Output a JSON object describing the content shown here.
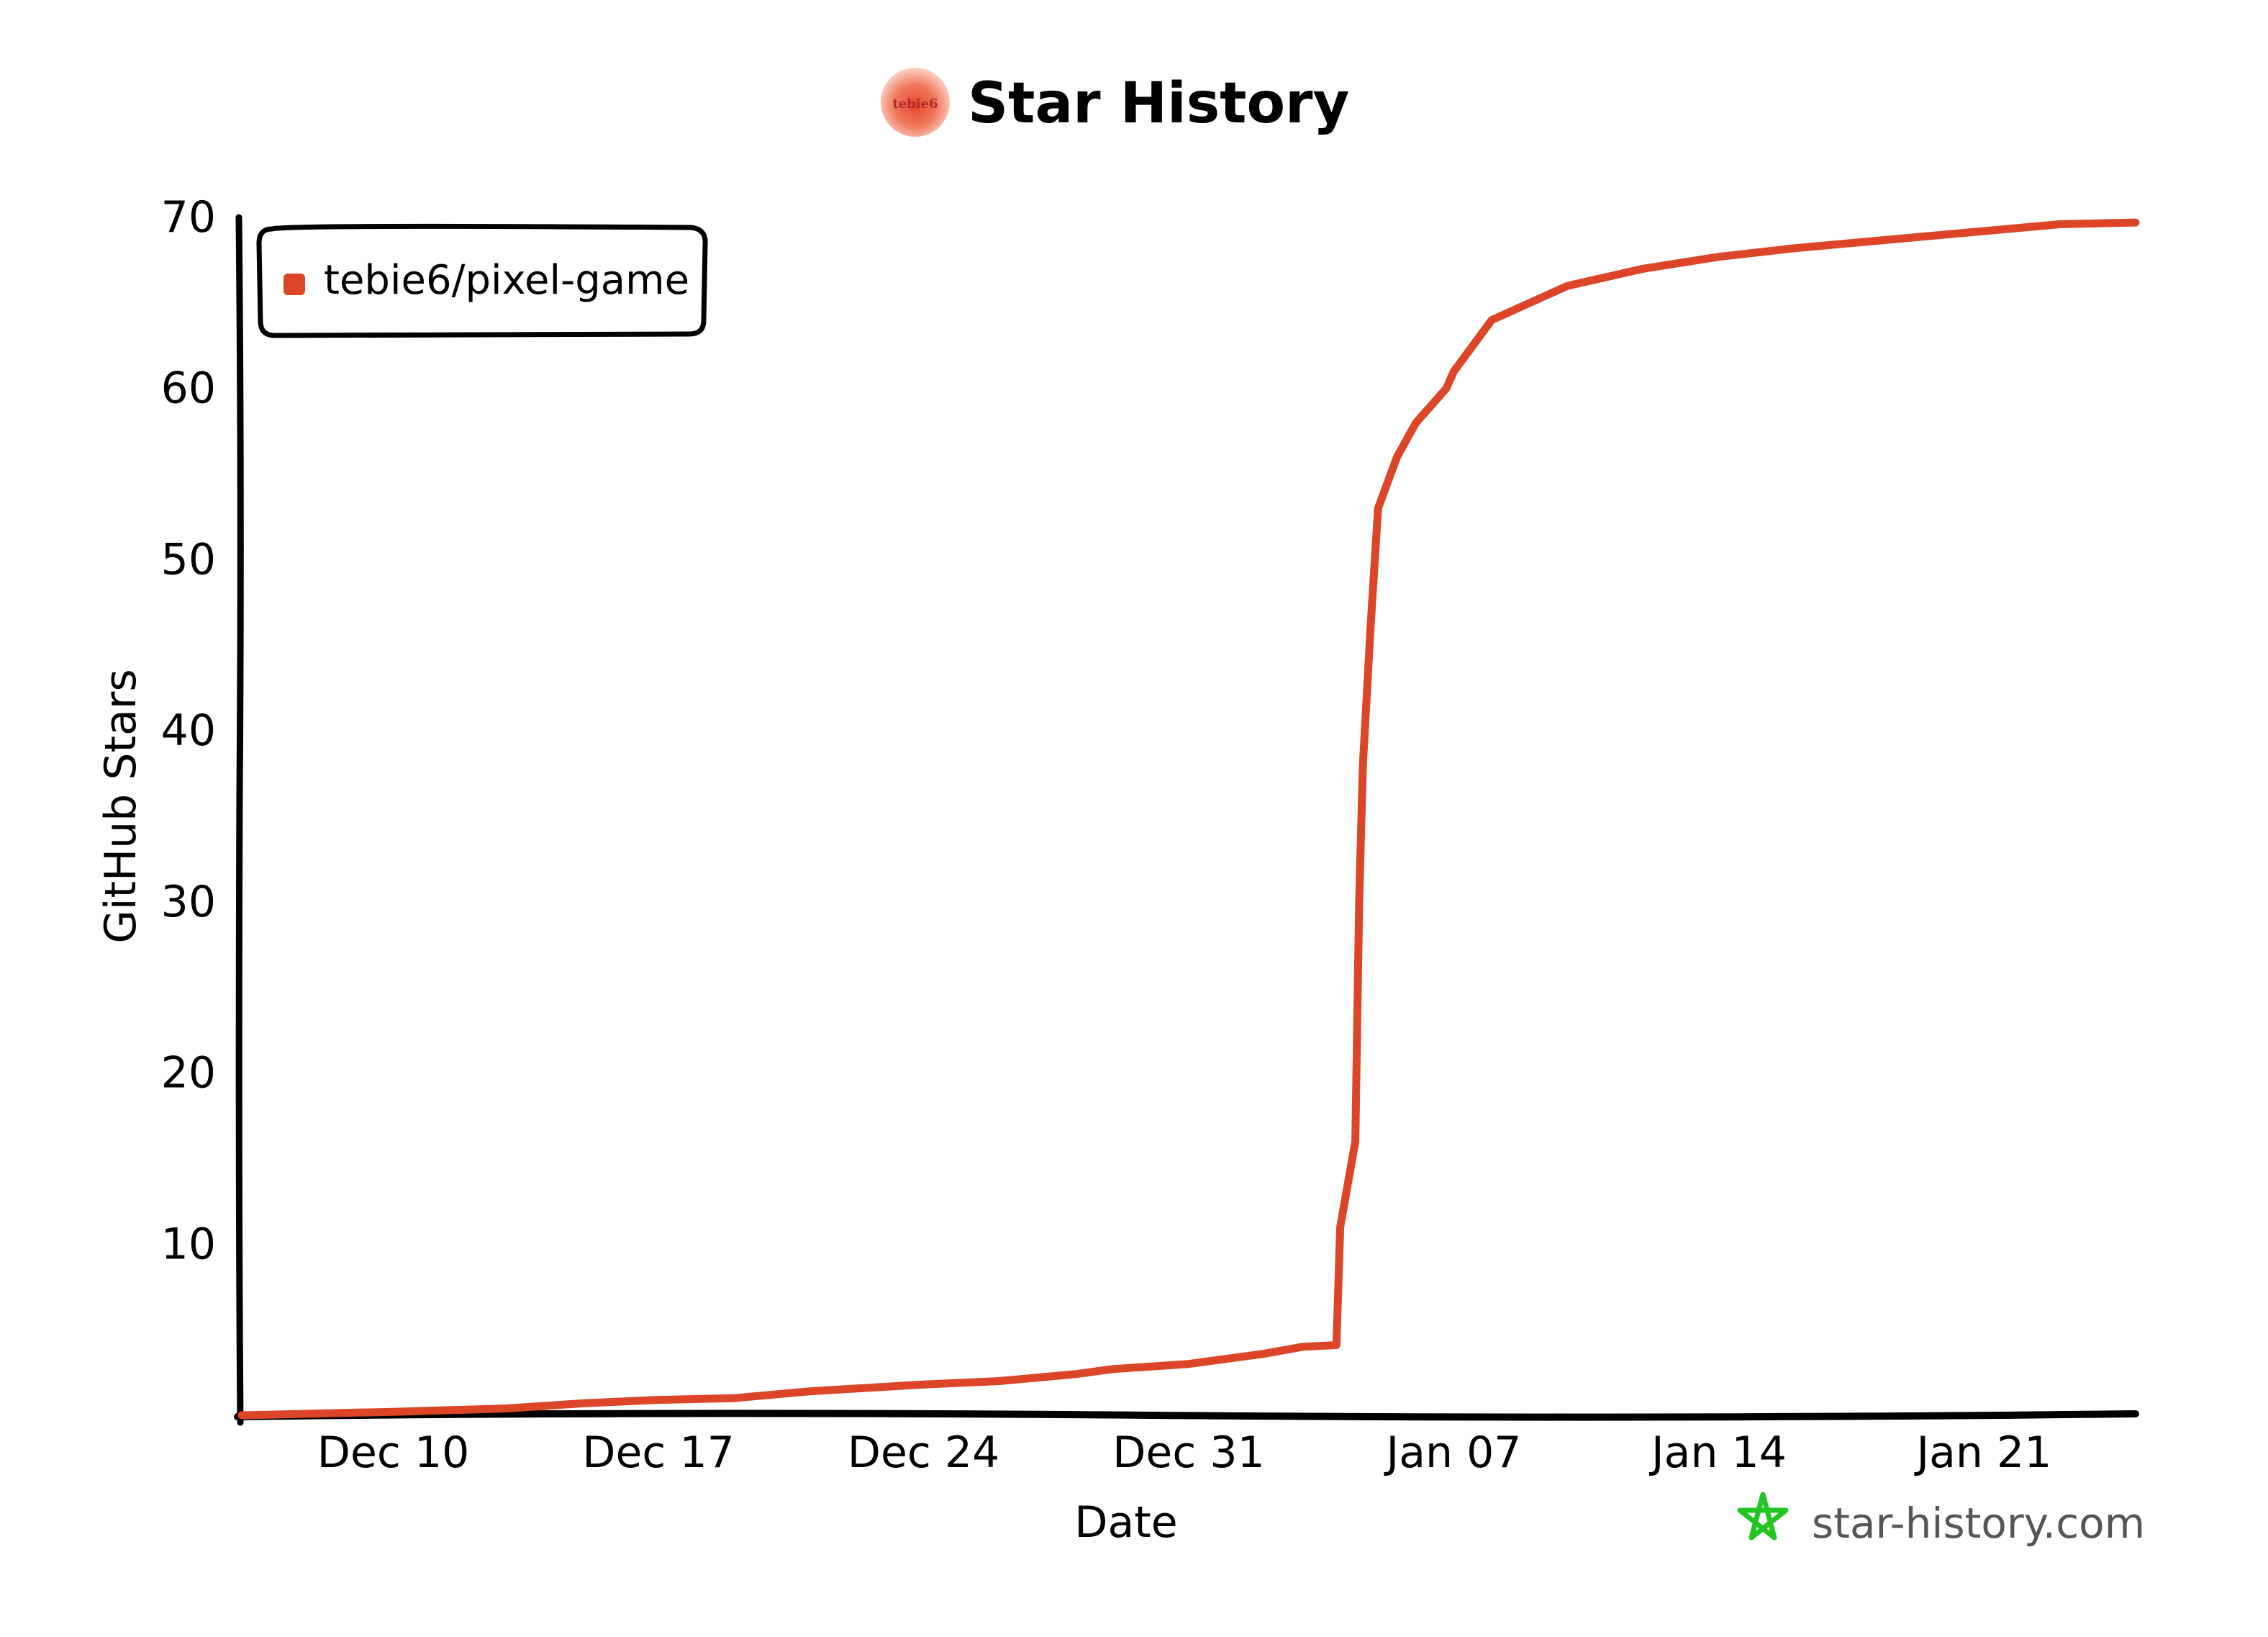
{
  "header": {
    "title": "Star History",
    "avatar_text": "tebie6"
  },
  "chart_data": {
    "type": "line",
    "title": "Star History",
    "xlabel": "Date",
    "ylabel": "GitHub Stars",
    "x_ticks": [
      "Dec 10",
      "Dec 17",
      "Dec 24",
      "Dec 31",
      "Jan 07",
      "Jan 14",
      "Jan 21"
    ],
    "y_ticks": [
      10,
      20,
      30,
      40,
      50,
      60,
      70
    ],
    "xlim": [
      "2023-12-06",
      "2024-01-25"
    ],
    "ylim": [
      0,
      70
    ],
    "grid": false,
    "legend_position": "top-left",
    "series": [
      {
        "name": "tebie6/pixel-game",
        "color": "#dd4528",
        "points": [
          [
            "2023-12-06",
            0
          ],
          [
            "2023-12-10",
            0.2
          ],
          [
            "2023-12-13",
            0.4
          ],
          [
            "2023-12-15",
            0.7
          ],
          [
            "2023-12-17",
            0.9
          ],
          [
            "2023-12-19",
            1.0
          ],
          [
            "2023-12-21",
            1.4
          ],
          [
            "2023-12-24",
            1.8
          ],
          [
            "2023-12-26",
            2.0
          ],
          [
            "2023-12-28",
            2.4
          ],
          [
            "2023-12-29",
            2.7
          ],
          [
            "2023-12-31",
            3.0
          ],
          [
            "2024-01-02",
            3.6
          ],
          [
            "2024-01-03",
            4.0
          ],
          [
            "2024-01-03.9",
            4.1
          ],
          [
            "2024-01-04",
            11
          ],
          [
            "2024-01-04.4",
            16
          ],
          [
            "2024-01-04.5",
            30
          ],
          [
            "2024-01-04.6",
            38
          ],
          [
            "2024-01-04.8",
            46
          ],
          [
            "2024-01-05",
            53
          ],
          [
            "2024-01-05.5",
            56
          ],
          [
            "2024-01-06",
            58
          ],
          [
            "2024-01-06.8",
            60
          ],
          [
            "2024-01-07",
            61
          ],
          [
            "2024-01-08",
            64
          ],
          [
            "2024-01-10",
            66
          ],
          [
            "2024-01-12",
            67
          ],
          [
            "2024-01-14",
            67.7
          ],
          [
            "2024-01-16",
            68.2
          ],
          [
            "2024-01-19",
            68.8
          ],
          [
            "2024-01-21",
            69.2
          ],
          [
            "2024-01-23",
            69.6
          ],
          [
            "2024-01-25",
            69.7
          ]
        ]
      }
    ]
  },
  "branding": {
    "text": "star-history.com",
    "icon": "star-icon",
    "icon_color": "#22c522"
  }
}
